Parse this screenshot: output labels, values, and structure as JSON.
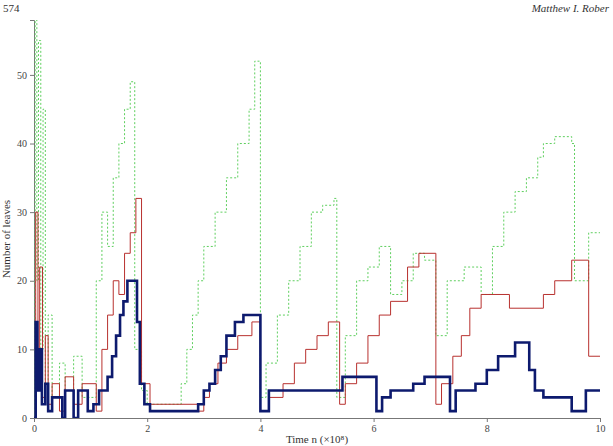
{
  "chart_data": {
    "type": "line",
    "annotations": [
      "574",
      "Matthew I. Rober"
    ],
    "x_label": "Time n (×10⁸)",
    "y_label": "Number of leaves",
    "xlim": [
      0,
      10
    ],
    "ylim": [
      0,
      58
    ],
    "xticks": [
      0,
      2,
      4,
      6,
      8,
      10
    ],
    "yticks": [
      0,
      10,
      20,
      30,
      40,
      50
    ],
    "grid": false,
    "series": [
      {
        "color": "#5fcf5f",
        "line_style": "dotted",
        "x": [
          0,
          0.02,
          0.05,
          0.08,
          0.12,
          0.16,
          0.2,
          0.25,
          0.32,
          0.45,
          0.55,
          0.7,
          0.85,
          1.1,
          1.2,
          1.3,
          1.4,
          1.5,
          1.6,
          1.7,
          1.78,
          1.9,
          2.0,
          2.6,
          2.7,
          2.8,
          2.9,
          3.0,
          3.2,
          3.4,
          3.6,
          3.8,
          3.9,
          4.0,
          4.1,
          4.3,
          4.5,
          4.7,
          4.9,
          5.1,
          5.3,
          5.35,
          5.5,
          5.7,
          5.9,
          6.1,
          6.3,
          6.5,
          6.7,
          6.9,
          7.1,
          7.3,
          7.6,
          7.9,
          8.1,
          8.3,
          8.5,
          8.7,
          8.9,
          9.0,
          9.2,
          9.5,
          9.55,
          9.8,
          10
        ],
        "values": [
          0,
          58,
          20,
          55,
          10,
          45,
          5,
          15,
          3,
          8,
          4,
          9,
          3,
          20,
          30,
          25,
          35,
          40,
          45,
          49,
          10,
          4,
          2,
          5,
          10,
          15,
          20,
          25,
          30,
          35,
          40,
          45,
          52,
          3,
          8,
          15,
          20,
          25,
          30,
          31,
          32,
          3,
          12,
          20,
          22,
          25,
          18,
          20,
          24,
          23,
          12,
          20,
          22,
          18,
          25,
          30,
          33,
          35,
          38,
          40,
          41,
          40,
          20,
          27,
          27
        ]
      },
      {
        "color": "#b8312f",
        "line_style": "solid",
        "x": [
          0,
          0.03,
          0.07,
          0.1,
          0.15,
          0.2,
          0.25,
          0.32,
          0.45,
          0.55,
          0.7,
          0.85,
          1.1,
          1.2,
          1.3,
          1.4,
          1.5,
          1.6,
          1.7,
          1.8,
          1.9,
          2.05,
          2.9,
          3.0,
          3.1,
          3.25,
          3.4,
          3.6,
          3.85,
          4.0,
          4.15,
          4.4,
          4.6,
          4.8,
          5.0,
          5.2,
          5.4,
          5.5,
          5.7,
          5.9,
          6.1,
          6.3,
          6.6,
          6.8,
          7.1,
          7.2,
          7.4,
          7.55,
          7.7,
          7.9,
          8.4,
          9.0,
          9.2,
          9.5,
          9.8,
          10
        ],
        "values": [
          0,
          30,
          8,
          22,
          3,
          12,
          2,
          5,
          1,
          6,
          2,
          5,
          1,
          10,
          15,
          20,
          18,
          24,
          27,
          32,
          5,
          2,
          1,
          3,
          5,
          8,
          10,
          12,
          14,
          1,
          3,
          5,
          8,
          10,
          12,
          14,
          2,
          5,
          8,
          12,
          15,
          17,
          22,
          24,
          2,
          5,
          9,
          12,
          16,
          18,
          16,
          18,
          20,
          23,
          9,
          9
        ]
      },
      {
        "color": "#0d1a6e",
        "line_style": "solid",
        "x": [
          0,
          0.03,
          0.06,
          0.1,
          0.14,
          0.2,
          0.25,
          0.32,
          0.5,
          0.55,
          0.7,
          0.78,
          0.95,
          1.05,
          1.15,
          1.3,
          1.38,
          1.45,
          1.52,
          1.58,
          1.65,
          1.82,
          1.87,
          1.95,
          2.05,
          2.9,
          3.0,
          3.1,
          3.2,
          3.3,
          3.4,
          3.55,
          3.7,
          4.0,
          4.15,
          5.35,
          5.45,
          5.9,
          6.05,
          6.15,
          6.3,
          6.7,
          6.9,
          7.35,
          7.45,
          7.8,
          8.0,
          8.2,
          8.5,
          8.75,
          8.85,
          9.0,
          9.5,
          9.75,
          10
        ],
        "values": [
          0,
          14,
          4,
          10,
          2,
          5,
          1,
          3,
          0,
          4,
          0,
          4,
          1,
          2,
          4,
          6,
          9,
          12,
          15,
          17,
          20,
          14,
          5,
          2,
          1,
          2,
          4,
          5,
          7,
          9,
          12,
          14,
          15,
          1,
          4,
          4,
          6,
          6,
          1,
          3,
          4,
          5,
          6,
          1,
          4,
          5,
          7,
          9,
          11,
          7,
          4,
          3,
          1,
          4,
          4
        ]
      }
    ]
  }
}
